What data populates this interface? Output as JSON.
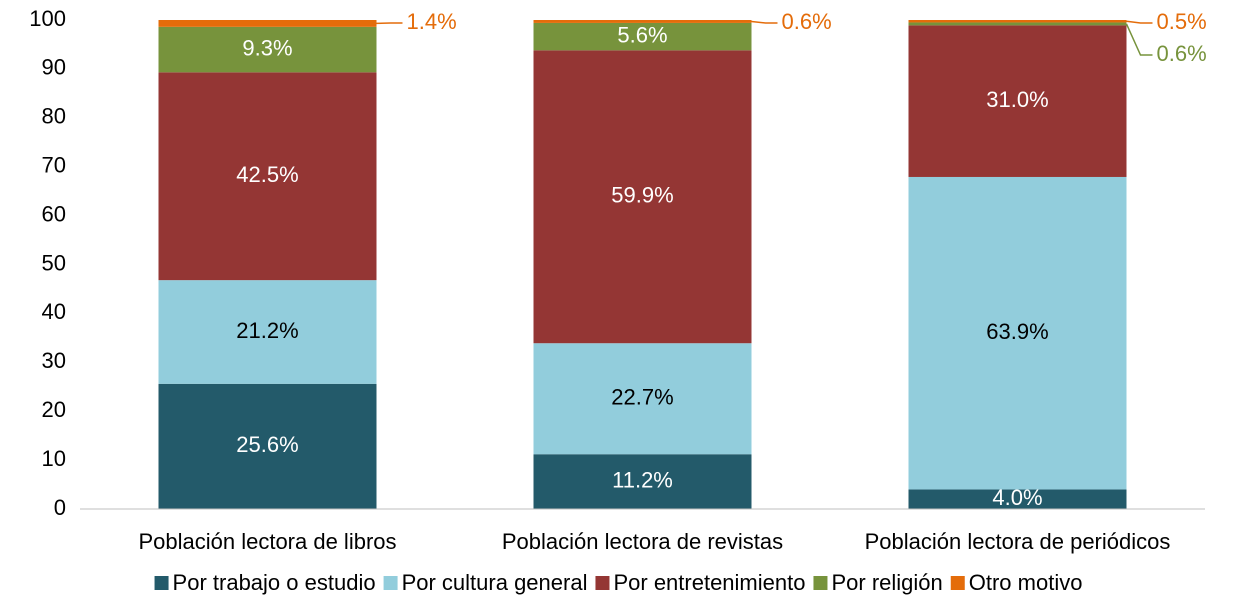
{
  "chart_data": {
    "type": "stacked_bar",
    "categories": [
      "Población lectora de libros",
      "Población lectora de revistas",
      "Población lectora de periódicos"
    ],
    "series": [
      {
        "name": "Por trabajo o estudio",
        "color": "#235a6a",
        "label_color": "#ffffff",
        "values": [
          25.6,
          11.2,
          4.0
        ],
        "value_labels": [
          "25.6%",
          "11.2%",
          "4.0%"
        ]
      },
      {
        "name": "Por cultura general",
        "color": "#92cddc",
        "label_color": "#000000",
        "values": [
          21.2,
          22.7,
          63.9
        ],
        "value_labels": [
          "21.2%",
          "22.7%",
          "63.9%"
        ]
      },
      {
        "name": "Por entretenimiento",
        "color": "#943634",
        "label_color": "#ffffff",
        "values": [
          42.5,
          59.9,
          31.0
        ],
        "value_labels": [
          "42.5%",
          "59.9%",
          "31.0%"
        ]
      },
      {
        "name": "Por religión",
        "color": "#77933c",
        "label_color": "#ffffff",
        "values": [
          9.3,
          5.6,
          0.6
        ],
        "value_labels": [
          "9.3%",
          "5.6%",
          "0.6%"
        ]
      },
      {
        "name": "Otro motivo",
        "color": "#e46c0a",
        "label_color": "#e46c0a",
        "values": [
          1.4,
          0.6,
          0.5
        ],
        "value_labels": [
          "1.4%",
          "0.6%",
          "0.5%"
        ]
      }
    ],
    "ylim": [
      0,
      100
    ],
    "yticks": [
      0,
      10,
      20,
      30,
      40,
      50,
      60,
      70,
      80,
      90,
      100
    ],
    "grid": false,
    "legend": "bottom"
  }
}
